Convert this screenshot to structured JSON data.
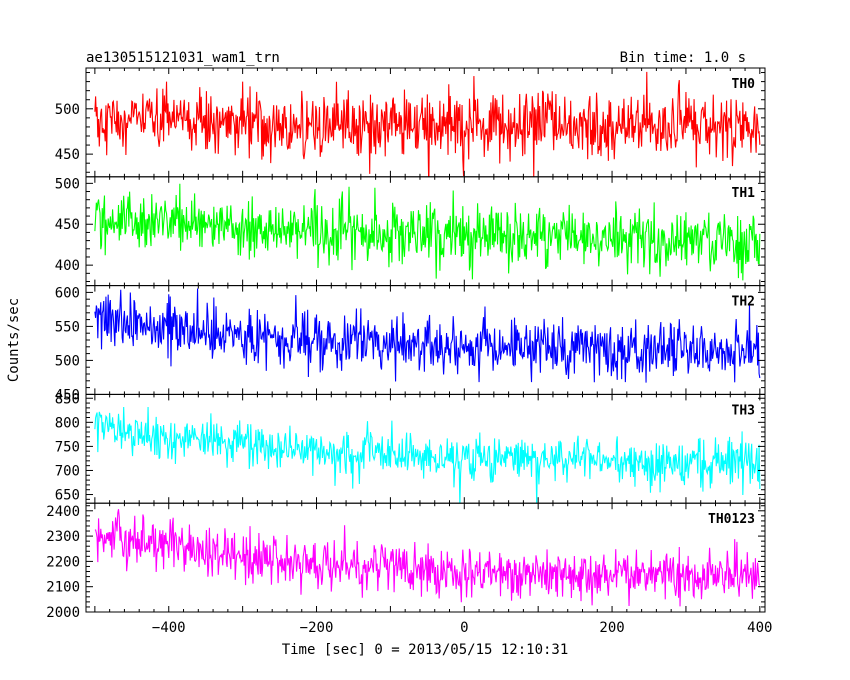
{
  "chart_data": {
    "type": "line",
    "title": "ae130515121031_wam1_trn",
    "subtitle": "Bin time: 1.0 s",
    "xlabel": "Time [sec] 0 = 2013/05/15 12:10:31",
    "ylabel": "Counts/sec",
    "xlim": [
      -512,
      407
    ],
    "x_ticks": [
      -400,
      -200,
      0,
      200,
      400
    ],
    "x_tick_labels": [
      "−400",
      "−200",
      "0",
      "200",
      "400"
    ],
    "grid": false,
    "panels": [
      {
        "name": "TH0",
        "color": "#ff0000",
        "ylim": [
          425,
          545
        ],
        "y_ticks": [
          450,
          500
        ],
        "trend": [
          {
            "x": -500,
            "y": 488
          },
          {
            "x": -300,
            "y": 483
          },
          {
            "x": 0,
            "y": 480
          },
          {
            "x": 400,
            "y": 482
          }
        ],
        "noise_sd": 18
      },
      {
        "name": "TH1",
        "color": "#00ff00",
        "ylim": [
          375,
          508
        ],
        "y_ticks": [
          400,
          450,
          500
        ],
        "trend": [
          {
            "x": -500,
            "y": 455
          },
          {
            "x": -350,
            "y": 450
          },
          {
            "x": -200,
            "y": 440
          },
          {
            "x": 0,
            "y": 435
          },
          {
            "x": 400,
            "y": 432
          }
        ],
        "noise_sd": 18
      },
      {
        "name": "TH2",
        "color": "#0000ff",
        "ylim": [
          450,
          610
        ],
        "y_ticks": [
          450,
          500,
          550,
          600
        ],
        "trend": [
          {
            "x": -500,
            "y": 565
          },
          {
            "x": -350,
            "y": 545
          },
          {
            "x": -200,
            "y": 528
          },
          {
            "x": 0,
            "y": 520
          },
          {
            "x": 400,
            "y": 515
          }
        ],
        "noise_sd": 21
      },
      {
        "name": "TH3",
        "color": "#00ffff",
        "ylim": [
          632,
          858
        ],
        "y_ticks": [
          650,
          700,
          750,
          800,
          850
        ],
        "trend": [
          {
            "x": -500,
            "y": 790
          },
          {
            "x": -350,
            "y": 760
          },
          {
            "x": -200,
            "y": 740
          },
          {
            "x": 0,
            "y": 725
          },
          {
            "x": 400,
            "y": 720
          }
        ],
        "noise_sd": 24
      },
      {
        "name": "TH0123",
        "color": "#ff00ff",
        "ylim": [
          2000,
          2430
        ],
        "y_ticks": [
          2000,
          2100,
          2200,
          2300,
          2400
        ],
        "trend": [
          {
            "x": -500,
            "y": 2300
          },
          {
            "x": -350,
            "y": 2240
          },
          {
            "x": -200,
            "y": 2190
          },
          {
            "x": 0,
            "y": 2155
          },
          {
            "x": 400,
            "y": 2140
          }
        ],
        "noise_sd": 48
      }
    ]
  }
}
